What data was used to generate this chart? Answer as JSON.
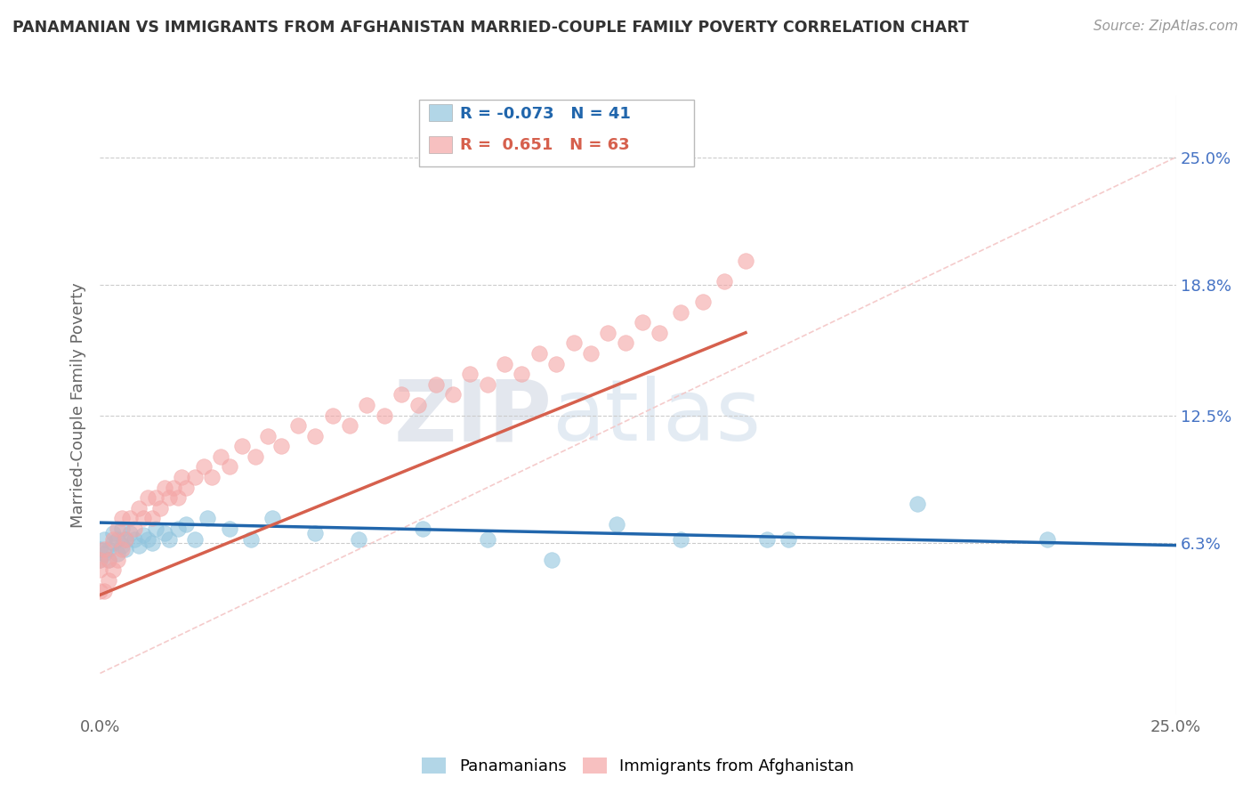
{
  "title": "PANAMANIAN VS IMMIGRANTS FROM AFGHANISTAN MARRIED-COUPLE FAMILY POVERTY CORRELATION CHART",
  "source": "Source: ZipAtlas.com",
  "ylabel": "Married-Couple Family Poverty",
  "xlim": [
    0.0,
    0.25
  ],
  "ylim": [
    -0.02,
    0.28
  ],
  "legend_blue_r": "-0.073",
  "legend_blue_n": "41",
  "legend_pink_r": "0.651",
  "legend_pink_n": "63",
  "blue_color": "#92c5de",
  "pink_color": "#f4a6a6",
  "blue_line_color": "#2166ac",
  "pink_line_color": "#d6604d",
  "diagonal_color": "#f4c6c6",
  "blue_points_x": [
    0.0,
    0.0,
    0.001,
    0.001,
    0.002,
    0.002,
    0.003,
    0.003,
    0.004,
    0.004,
    0.005,
    0.005,
    0.006,
    0.006,
    0.007,
    0.008,
    0.009,
    0.01,
    0.011,
    0.012,
    0.013,
    0.015,
    0.016,
    0.018,
    0.02,
    0.022,
    0.025,
    0.03,
    0.035,
    0.04,
    0.05,
    0.06,
    0.075,
    0.09,
    0.105,
    0.12,
    0.135,
    0.155,
    0.16,
    0.19,
    0.22
  ],
  "blue_points_y": [
    0.055,
    0.06,
    0.058,
    0.065,
    0.06,
    0.055,
    0.063,
    0.068,
    0.058,
    0.065,
    0.062,
    0.07,
    0.065,
    0.06,
    0.068,
    0.065,
    0.062,
    0.067,
    0.065,
    0.063,
    0.07,
    0.068,
    0.065,
    0.07,
    0.072,
    0.065,
    0.075,
    0.07,
    0.065,
    0.075,
    0.068,
    0.065,
    0.07,
    0.065,
    0.055,
    0.072,
    0.065,
    0.065,
    0.065,
    0.082,
    0.065
  ],
  "pink_points_x": [
    0.0,
    0.0,
    0.0,
    0.001,
    0.001,
    0.002,
    0.002,
    0.003,
    0.003,
    0.004,
    0.004,
    0.005,
    0.005,
    0.006,
    0.007,
    0.008,
    0.009,
    0.01,
    0.011,
    0.012,
    0.013,
    0.014,
    0.015,
    0.016,
    0.017,
    0.018,
    0.019,
    0.02,
    0.022,
    0.024,
    0.026,
    0.028,
    0.03,
    0.033,
    0.036,
    0.039,
    0.042,
    0.046,
    0.05,
    0.054,
    0.058,
    0.062,
    0.066,
    0.07,
    0.074,
    0.078,
    0.082,
    0.086,
    0.09,
    0.094,
    0.098,
    0.102,
    0.106,
    0.11,
    0.114,
    0.118,
    0.122,
    0.126,
    0.13,
    0.135,
    0.14,
    0.145,
    0.15
  ],
  "pink_points_y": [
    0.04,
    0.05,
    0.055,
    0.04,
    0.06,
    0.045,
    0.055,
    0.05,
    0.065,
    0.055,
    0.07,
    0.06,
    0.075,
    0.065,
    0.075,
    0.07,
    0.08,
    0.075,
    0.085,
    0.075,
    0.085,
    0.08,
    0.09,
    0.085,
    0.09,
    0.085,
    0.095,
    0.09,
    0.095,
    0.1,
    0.095,
    0.105,
    0.1,
    0.11,
    0.105,
    0.115,
    0.11,
    0.12,
    0.115,
    0.125,
    0.12,
    0.13,
    0.125,
    0.135,
    0.13,
    0.14,
    0.135,
    0.145,
    0.14,
    0.15,
    0.145,
    0.155,
    0.15,
    0.16,
    0.155,
    0.165,
    0.16,
    0.17,
    0.165,
    0.175,
    0.18,
    0.19,
    0.2
  ],
  "blue_line_x": [
    0.0,
    0.25
  ],
  "blue_line_y": [
    0.073,
    0.062
  ],
  "pink_line_x": [
    0.0,
    0.15
  ],
  "pink_line_y": [
    0.038,
    0.165
  ]
}
